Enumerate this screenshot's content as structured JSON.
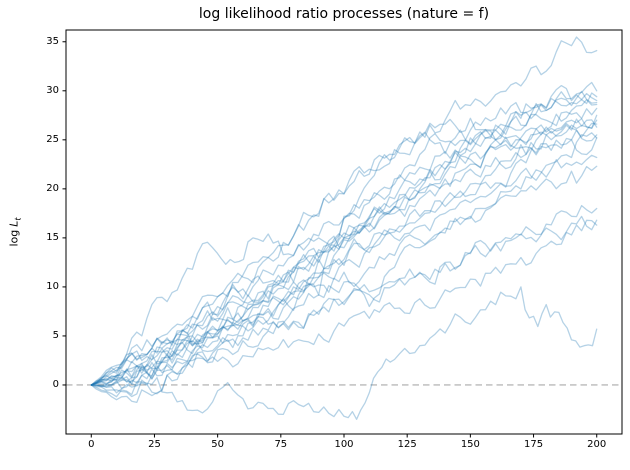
{
  "chart_data": {
    "type": "line",
    "title": "log likelihood ratio processes (nature = f)",
    "xlabel": "",
    "ylabel": {
      "prefix": "log",
      "variable": "L",
      "subscript": "t"
    },
    "xlim": [
      -10,
      210
    ],
    "ylim": [
      -5.0,
      36.2
    ],
    "xticks": [
      0,
      25,
      50,
      75,
      100,
      125,
      150,
      175,
      200
    ],
    "yticks": [
      0,
      5,
      10,
      15,
      20,
      25,
      30,
      35
    ],
    "grid": false,
    "legend": "none",
    "n_series": 20,
    "styles": {
      "line_color": "#1f77b4",
      "line_alpha": 0.33,
      "line_width": 1.3,
      "zero_line_color": "#aaaaaa",
      "zero_line_dash": "6.5 4",
      "spine_color": "#000000",
      "tick_color": "#000000",
      "background": "#ffffff"
    },
    "zero_line_y": 0,
    "series": [
      {
        "x": [
          0,
          10,
          20,
          30,
          40,
          48,
          55,
          62,
          70,
          80,
          90,
          100,
          110,
          120,
          130,
          140,
          150,
          160,
          170,
          180,
          190,
          200
        ],
        "y": [
          0,
          2.0,
          5.0,
          8.5,
          11.8,
          14.0,
          12.8,
          14.6,
          15.4,
          13.2,
          15.2,
          17.0,
          18.6,
          21.0,
          23.5,
          24.8,
          26.0,
          27.2,
          27.8,
          28.3,
          29.0,
          29.4
        ]
      },
      {
        "x": [
          0,
          10,
          20,
          30,
          40,
          50,
          60,
          70,
          80,
          90,
          100,
          110,
          120,
          130,
          140,
          150,
          160,
          170,
          180,
          190,
          200
        ],
        "y": [
          0,
          0.8,
          2.8,
          4.8,
          7.0,
          9.0,
          11.2,
          13.0,
          15.2,
          17.2,
          19.5,
          22.0,
          24.0,
          25.8,
          27.0,
          28.5,
          29.6,
          30.5,
          32.0,
          34.6,
          34.1
        ]
      },
      {
        "x": [
          0,
          10,
          20,
          30,
          40,
          50,
          60,
          70,
          80,
          90,
          100,
          105,
          110,
          115,
          120,
          130,
          140,
          150,
          160,
          170,
          175,
          180,
          185,
          190,
          195,
          200
        ],
        "y": [
          0,
          -1.2,
          0.3,
          -0.8,
          -2.6,
          -0.6,
          -1.4,
          -2.4,
          -1.6,
          -2.8,
          -3.2,
          -3.5,
          -0.8,
          1.8,
          2.6,
          4.0,
          5.3,
          6.2,
          8.2,
          10.0,
          7.0,
          8.2,
          7.4,
          4.6,
          4.0,
          5.7
        ]
      },
      {
        "x": [
          0,
          10,
          20,
          30,
          40,
          50,
          60,
          70,
          80,
          90,
          100,
          110,
          120,
          130,
          140,
          150,
          160,
          170,
          180,
          190,
          200
        ],
        "y": [
          0,
          -0.5,
          0.5,
          1.0,
          1.8,
          2.4,
          3.0,
          3.8,
          4.4,
          5.2,
          6.0,
          6.8,
          7.8,
          8.8,
          9.7,
          10.8,
          12.0,
          13.0,
          14.2,
          15.3,
          16.3
        ]
      },
      {
        "x": [
          0,
          10,
          20,
          30,
          40,
          50,
          60,
          70,
          80,
          90,
          100,
          110,
          120,
          130,
          140,
          150,
          160,
          170,
          180,
          190,
          200
        ],
        "y": [
          0,
          0.5,
          1.5,
          2.3,
          3.2,
          4.0,
          4.8,
          5.6,
          6.4,
          7.2,
          8.2,
          9.2,
          10.2,
          11.4,
          12.4,
          13.4,
          14.4,
          15.4,
          16.4,
          17.2,
          18.0
        ]
      },
      {
        "x": [
          0,
          10,
          20,
          30,
          40,
          50,
          60,
          70,
          80,
          90,
          100,
          110,
          120,
          130,
          140,
          150,
          160,
          170,
          180,
          190,
          200
        ],
        "y": [
          0,
          1.0,
          2.2,
          3.5,
          4.5,
          5.2,
          6.0,
          6.6,
          7.6,
          9.2,
          17.2,
          20.8,
          23.2,
          25.4,
          23.6,
          24.6,
          25.0,
          24.2,
          24.6,
          25.0,
          25.2
        ]
      },
      {
        "x": [
          0,
          10,
          20,
          30,
          40,
          50,
          60,
          70,
          80,
          90,
          100,
          110,
          120,
          130,
          140,
          150,
          160,
          170,
          180,
          190,
          200
        ],
        "y": [
          0,
          1.5,
          3.0,
          4.2,
          5.5,
          7.0,
          8.5,
          10.2,
          12.0,
          13.5,
          15.0,
          16.5,
          18.2,
          20.0,
          22.0,
          23.5,
          25.0,
          26.5,
          28.0,
          29.2,
          30.0
        ]
      },
      {
        "x": [
          0,
          10,
          20,
          30,
          40,
          50,
          60,
          70,
          80,
          90,
          100,
          110,
          120,
          130,
          140,
          150,
          160,
          170,
          180,
          190,
          200
        ],
        "y": [
          0,
          0.5,
          1.8,
          3.0,
          4.2,
          5.5,
          6.6,
          8.0,
          9.5,
          11.0,
          12.2,
          13.5,
          15.0,
          16.2,
          17.5,
          18.6,
          20.0,
          23.0,
          26.0,
          28.0,
          28.6
        ]
      },
      {
        "x": [
          0,
          10,
          20,
          30,
          40,
          50,
          60,
          70,
          80,
          90,
          100,
          110,
          120,
          130,
          140,
          150,
          160,
          170,
          180,
          190,
          200
        ],
        "y": [
          0,
          1.2,
          2.5,
          4.2,
          5.8,
          7.2,
          8.8,
          10.5,
          12.0,
          13.8,
          15.5,
          17.0,
          18.2,
          19.6,
          21.0,
          22.5,
          24.0,
          25.2,
          26.3,
          27.0,
          27.5
        ]
      },
      {
        "x": [
          0,
          10,
          20,
          30,
          40,
          50,
          60,
          70,
          80,
          90,
          100,
          110,
          120,
          130,
          140,
          150,
          160,
          170,
          180,
          190,
          200
        ],
        "y": [
          0,
          0.3,
          1.2,
          2.5,
          4.0,
          5.5,
          7.0,
          8.8,
          10.5,
          12.5,
          14.0,
          15.6,
          17.5,
          19.0,
          20.5,
          22.0,
          23.2,
          24.5,
          25.5,
          26.5,
          27.0
        ]
      },
      {
        "x": [
          0,
          10,
          20,
          30,
          40,
          50,
          60,
          70,
          80,
          90,
          100,
          110,
          120,
          130,
          140,
          150,
          160,
          170,
          180,
          190,
          200
        ],
        "y": [
          0,
          1.0,
          2.2,
          3.8,
          5.0,
          6.8,
          8.2,
          10.0,
          11.5,
          13.0,
          14.8,
          16.2,
          18.0,
          19.8,
          21.5,
          23.0,
          24.2,
          25.0,
          25.8,
          26.2,
          26.6
        ]
      },
      {
        "x": [
          0,
          10,
          20,
          30,
          40,
          50,
          60,
          70,
          80,
          90,
          100,
          110,
          120,
          130,
          140,
          150,
          160,
          170,
          180,
          190,
          200
        ],
        "y": [
          0,
          0.6,
          2.0,
          3.2,
          5.0,
          6.5,
          8.0,
          9.6,
          11.5,
          13.0,
          15.0,
          17.0,
          18.6,
          20.5,
          22.0,
          23.8,
          25.0,
          26.0,
          27.0,
          27.6,
          28.2
        ]
      },
      {
        "x": [
          0,
          10,
          20,
          30,
          40,
          50,
          60,
          70,
          80,
          90,
          100,
          110,
          120,
          130,
          140,
          150,
          160,
          170,
          180,
          190,
          200
        ],
        "y": [
          0,
          1.4,
          3.2,
          4.6,
          6.2,
          8.0,
          9.8,
          11.5,
          13.2,
          15.0,
          17.0,
          18.8,
          20.5,
          22.2,
          23.8,
          25.2,
          26.5,
          27.5,
          28.2,
          28.8,
          29.0
        ]
      },
      {
        "x": [
          0,
          10,
          20,
          30,
          40,
          50,
          60,
          70,
          80,
          90,
          100,
          110,
          120,
          130,
          140,
          150,
          160,
          170,
          180,
          190,
          200
        ],
        "y": [
          0,
          0.2,
          1.0,
          2.2,
          3.5,
          5.0,
          6.2,
          7.8,
          9.2,
          11.0,
          12.5,
          14.0,
          15.8,
          17.2,
          19.0,
          20.5,
          22.0,
          23.2,
          24.2,
          25.0,
          25.5
        ]
      },
      {
        "x": [
          0,
          10,
          20,
          30,
          40,
          50,
          60,
          70,
          80,
          90,
          100,
          110,
          120,
          130,
          140,
          150,
          160,
          170,
          180,
          190,
          200
        ],
        "y": [
          0,
          0.8,
          1.6,
          2.8,
          4.0,
          5.2,
          6.5,
          7.5,
          9.0,
          10.2,
          11.5,
          8.0,
          12.0,
          14.0,
          15.5,
          17.0,
          18.5,
          20.0,
          21.2,
          22.4,
          23.2
        ]
      },
      {
        "x": [
          0,
          10,
          20,
          30,
          40,
          50,
          60,
          70,
          80,
          90,
          100,
          110,
          120,
          130,
          140,
          150,
          160,
          170,
          180,
          190,
          200
        ],
        "y": [
          0,
          -0.8,
          0.2,
          1.5,
          2.5,
          3.8,
          5.0,
          6.2,
          7.8,
          9.2,
          10.5,
          12.0,
          13.2,
          14.8,
          16.0,
          17.2,
          18.5,
          19.8,
          21.0,
          21.8,
          22.3
        ]
      },
      {
        "x": [
          0,
          10,
          20,
          30,
          40,
          50,
          60,
          70,
          80,
          90,
          100,
          110,
          120,
          130,
          140,
          150,
          160,
          170,
          180,
          190,
          200
        ],
        "y": [
          0,
          -1.5,
          -0.5,
          1.0,
          2.8,
          4.5,
          6.5,
          8.5,
          10.5,
          12.8,
          15.0,
          17.2,
          19.0,
          21.0,
          22.8,
          24.5,
          26.0,
          27.2,
          28.0,
          28.5,
          28.8
        ]
      },
      {
        "x": [
          0,
          10,
          20,
          30,
          40,
          50,
          60,
          70,
          80,
          90,
          100,
          110,
          120,
          130,
          140,
          150,
          160,
          170,
          180,
          190,
          200
        ],
        "y": [
          0,
          1.8,
          3.5,
          5.2,
          7.0,
          9.0,
          11.0,
          13.0,
          15.2,
          17.5,
          19.5,
          21.5,
          23.5,
          25.2,
          26.6,
          27.2,
          26.0,
          25.0,
          25.5,
          26.0,
          26.3
        ]
      },
      {
        "x": [
          0,
          10,
          20,
          30,
          40,
          50,
          60,
          70,
          80,
          90,
          100,
          110,
          120,
          130,
          140,
          150,
          160,
          170,
          180,
          190,
          200
        ],
        "y": [
          0,
          0.4,
          1.0,
          2.0,
          3.0,
          3.6,
          4.5,
          5.5,
          6.5,
          7.5,
          8.5,
          9.5,
          10.5,
          11.5,
          12.5,
          13.5,
          14.5,
          15.3,
          16.0,
          16.5,
          16.8
        ]
      },
      {
        "x": [
          0,
          10,
          20,
          30,
          40,
          50,
          60,
          70,
          80,
          90,
          100,
          110,
          120,
          130,
          140,
          150,
          160,
          170,
          180,
          190,
          200
        ],
        "y": [
          0,
          0.9,
          1.8,
          3.0,
          4.4,
          5.6,
          7.0,
          8.4,
          10.0,
          11.4,
          12.8,
          14.2,
          15.6,
          17.0,
          18.2,
          19.4,
          20.6,
          21.6,
          22.4,
          23.2,
          25.2
        ]
      }
    ]
  }
}
